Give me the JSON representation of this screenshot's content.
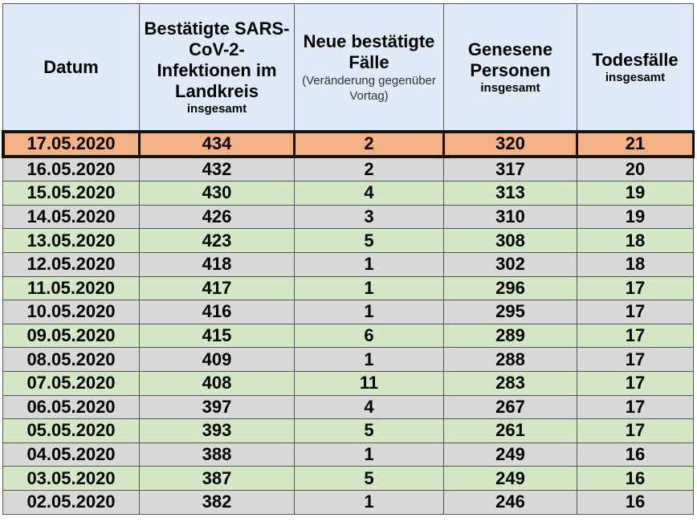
{
  "header": {
    "col1": {
      "title": "Datum"
    },
    "col2": {
      "title": "Bestätigte SARS-CoV-2-Infektionen im Landkreis",
      "sub": "insgesamt"
    },
    "col3": {
      "title": "Neue bestätigte Fälle",
      "note": "(Veränderung gegenüber Vortag)"
    },
    "col4": {
      "title": "Genesene Personen",
      "sub": "insgesamt"
    },
    "col5": {
      "title": "Todesfälle",
      "sub": "insgesamt"
    }
  },
  "rows": [
    {
      "date": "17.05.2020",
      "total": "434",
      "new": "2",
      "recovered": "320",
      "deaths": "21"
    },
    {
      "date": "16.05.2020",
      "total": "432",
      "new": "2",
      "recovered": "317",
      "deaths": "20"
    },
    {
      "date": "15.05.2020",
      "total": "430",
      "new": "4",
      "recovered": "313",
      "deaths": "19"
    },
    {
      "date": "14.05.2020",
      "total": "426",
      "new": "3",
      "recovered": "310",
      "deaths": "19"
    },
    {
      "date": "13.05.2020",
      "total": "423",
      "new": "5",
      "recovered": "308",
      "deaths": "18"
    },
    {
      "date": "12.05.2020",
      "total": "418",
      "new": "1",
      "recovered": "302",
      "deaths": "18"
    },
    {
      "date": "11.05.2020",
      "total": "417",
      "new": "1",
      "recovered": "296",
      "deaths": "17"
    },
    {
      "date": "10.05.2020",
      "total": "416",
      "new": "1",
      "recovered": "295",
      "deaths": "17"
    },
    {
      "date": "09.05.2020",
      "total": "415",
      "new": "6",
      "recovered": "289",
      "deaths": "17"
    },
    {
      "date": "08.05.2020",
      "total": "409",
      "new": "1",
      "recovered": "288",
      "deaths": "17"
    },
    {
      "date": "07.05.2020",
      "total": "408",
      "new": "11",
      "recovered": "283",
      "deaths": "17"
    },
    {
      "date": "06.05.2020",
      "total": "397",
      "new": "4",
      "recovered": "267",
      "deaths": "17"
    },
    {
      "date": "05.05.2020",
      "total": "393",
      "new": "5",
      "recovered": "261",
      "deaths": "17"
    },
    {
      "date": "04.05.2020",
      "total": "388",
      "new": "1",
      "recovered": "249",
      "deaths": "16"
    },
    {
      "date": "03.05.2020",
      "total": "387",
      "new": "5",
      "recovered": "249",
      "deaths": "16"
    },
    {
      "date": "02.05.2020",
      "total": "382",
      "new": "1",
      "recovered": "246",
      "deaths": "16"
    }
  ],
  "colors": {
    "header_bg": "#dfe9f7",
    "highlight_row": "#f4b183",
    "gray_row": "#d8d8d8",
    "green_row": "#d3e7c5"
  }
}
